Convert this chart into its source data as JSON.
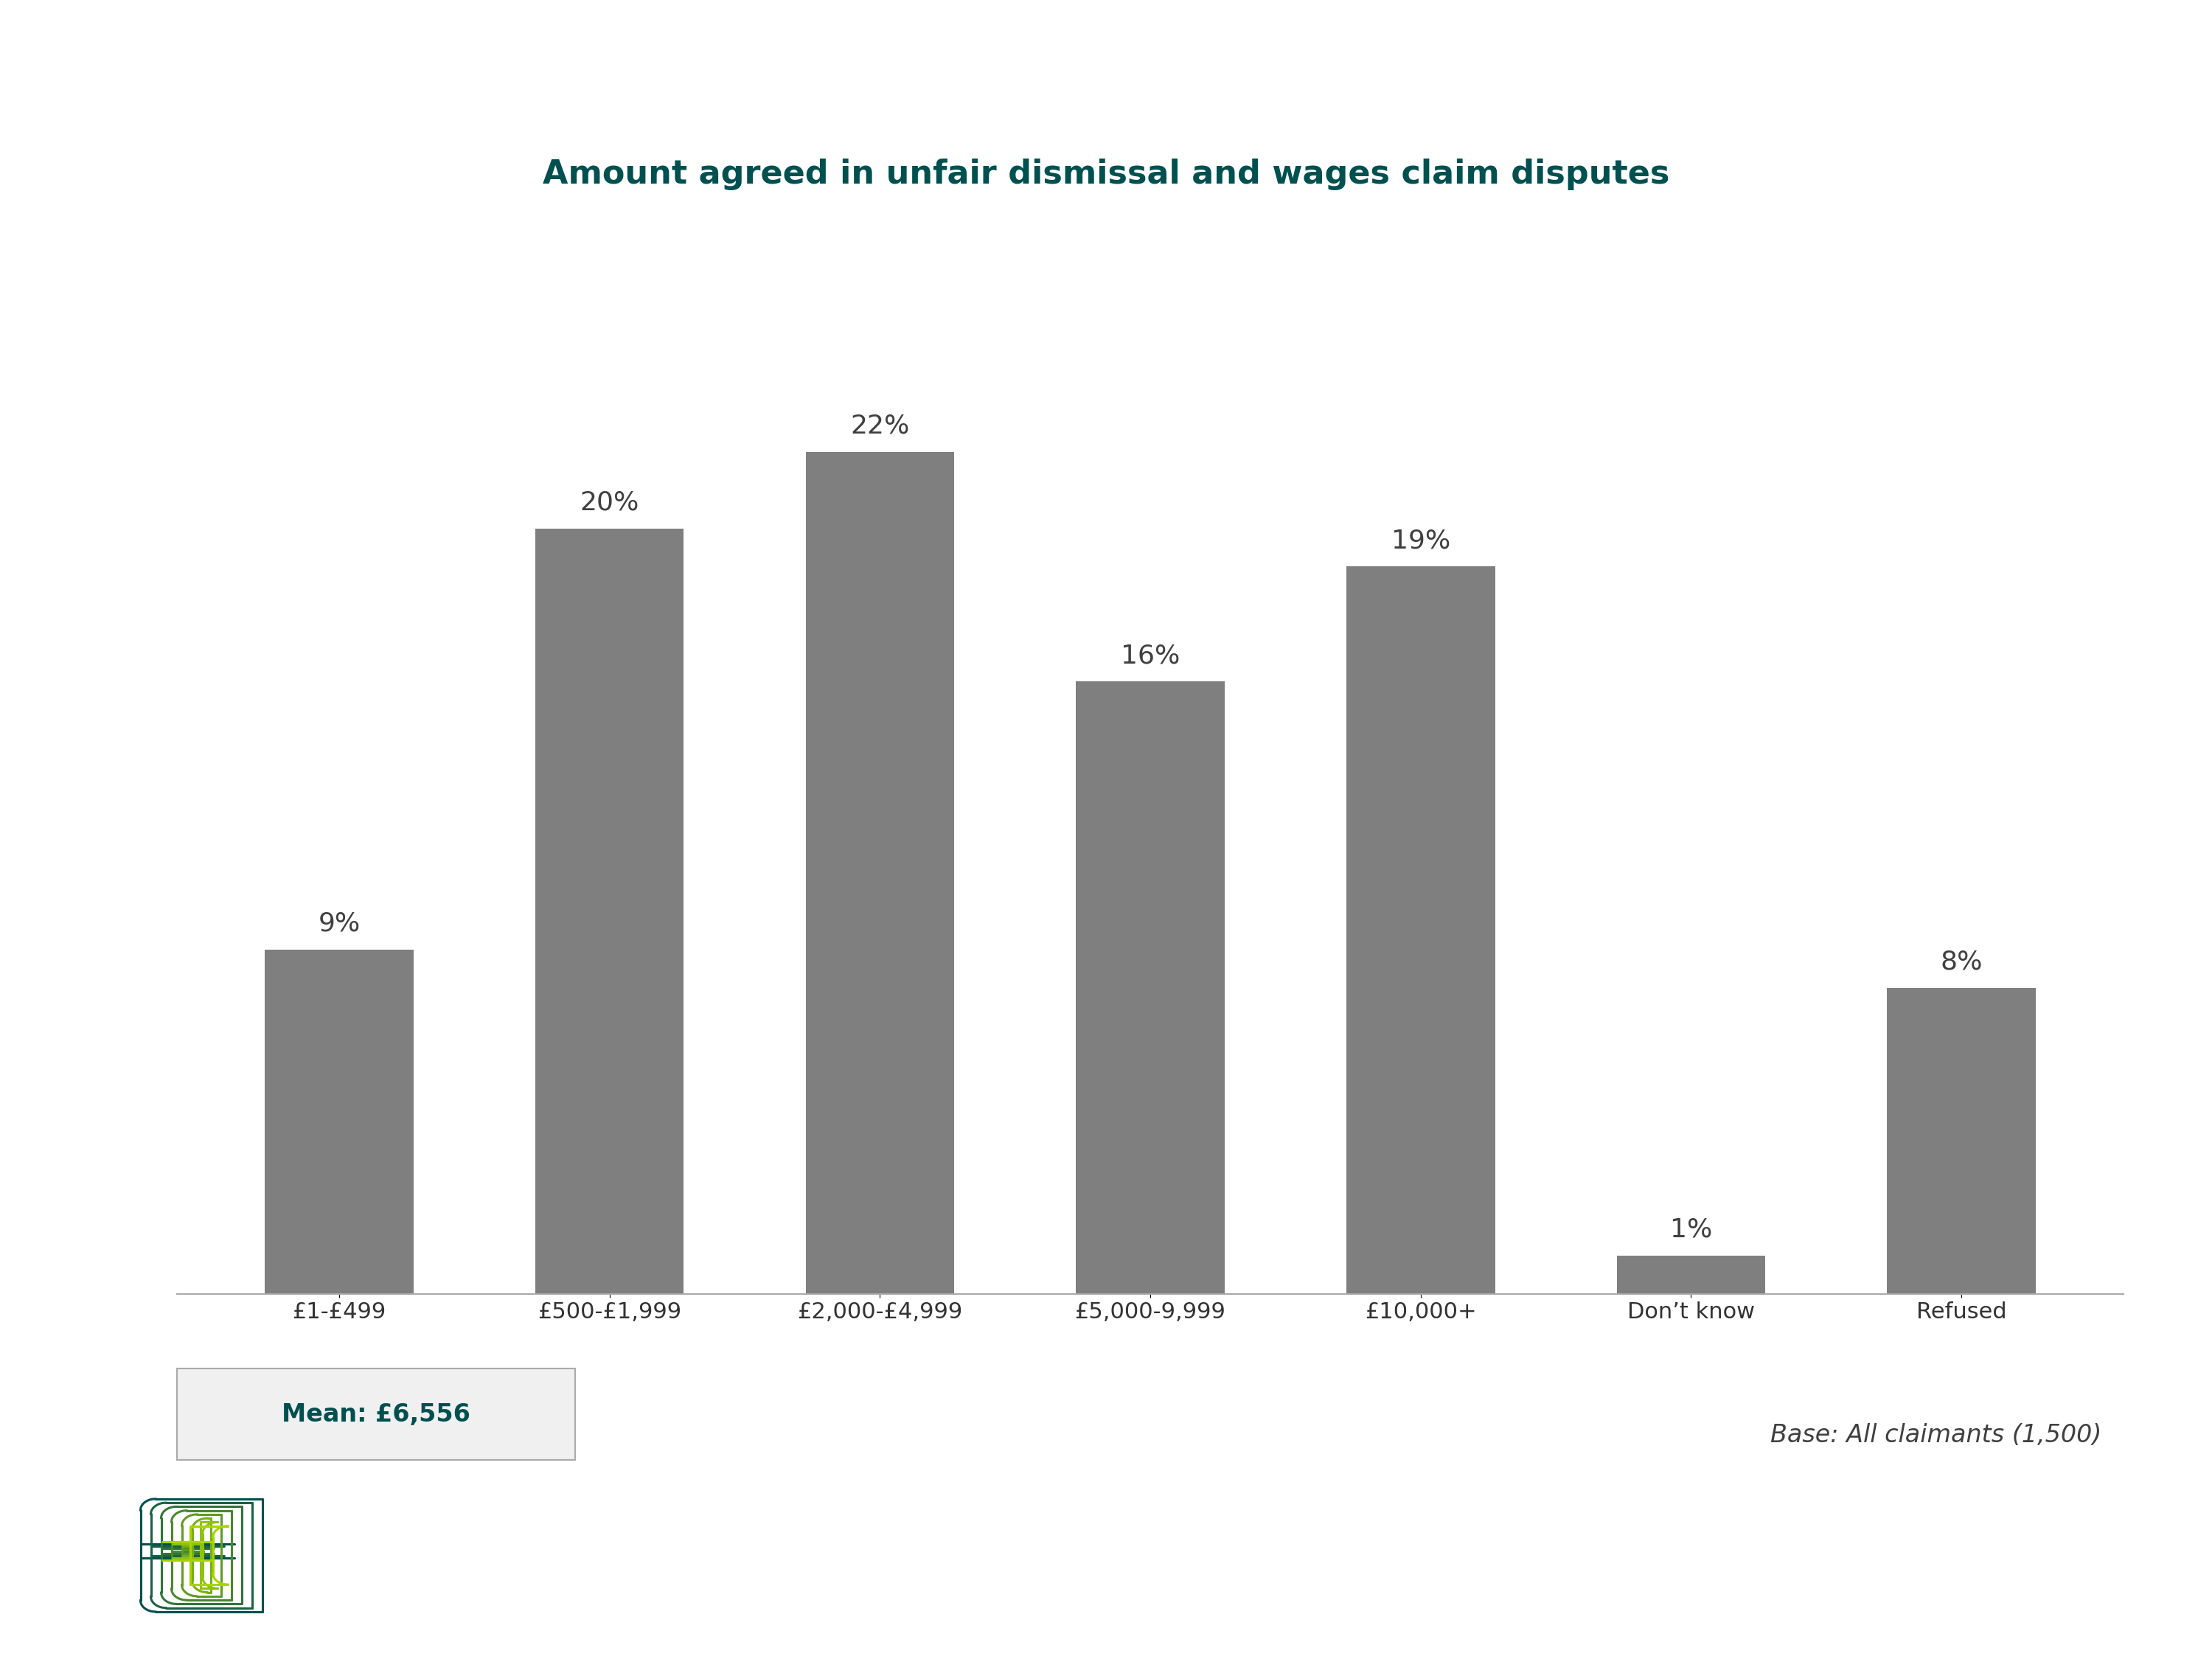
{
  "title": "Amount agreed in unfair dismissal and wages claim disputes",
  "categories": [
    "£1-£499",
    "£500-£1,999",
    "£2,000-£4,999",
    "£5,000-9,999",
    "£10,000+",
    "Don’t know",
    "Refused"
  ],
  "values": [
    9,
    20,
    22,
    16,
    19,
    1,
    8
  ],
  "bar_color": "#7f7f7f",
  "title_color": "#005050",
  "label_color": "#404040",
  "background_color": "#ffffff",
  "mean_text": "Mean: £6,556",
  "mean_text_color": "#005050",
  "mean_box_bg": "#f0f0f0",
  "mean_box_edge": "#aaaaaa",
  "base_text": "Base: All claimants (1,500)",
  "base_text_color": "#404040",
  "tick_color": "#333333",
  "ylim": [
    0,
    26
  ],
  "title_fontsize": 32,
  "label_fontsize": 24,
  "tick_fontsize": 22,
  "annot_fontsize": 26
}
